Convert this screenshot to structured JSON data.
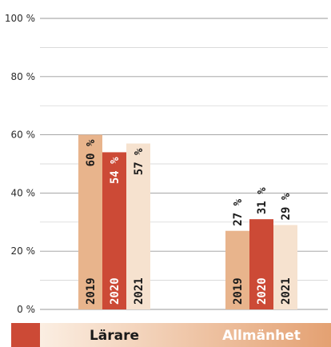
{
  "chart_data": {
    "type": "bar",
    "categories": [
      "Lärare",
      "Allmänhet"
    ],
    "series": [
      {
        "name": "2019",
        "values": [
          60,
          27
        ],
        "color": "#e8b48c"
      },
      {
        "name": "2020",
        "values": [
          54,
          31
        ],
        "color": "#cc4a36"
      },
      {
        "name": "2021",
        "values": [
          57,
          29
        ],
        "color": "#f6e2cf"
      }
    ],
    "value_labels": [
      [
        "60 %",
        "27 %"
      ],
      [
        "54 %",
        "31 %"
      ],
      [
        "57 %",
        "29 %"
      ]
    ],
    "yticks": [
      "0 %",
      "20 %",
      "40 %",
      "60 %",
      "80 %",
      "100 %"
    ],
    "ylim": [
      0,
      100
    ],
    "grid": true,
    "category_label_colors": [
      "#1a1a1a",
      "#ffffff"
    ],
    "band_colors": {
      "swatch": "#cc4a36",
      "gradient_start": "#fbeee2",
      "gradient_end": "#e4a172"
    }
  }
}
